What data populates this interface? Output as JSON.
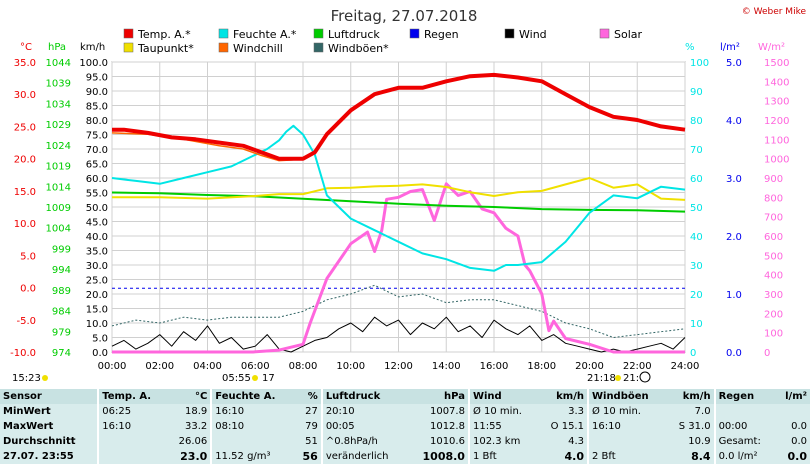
{
  "title": "Freitag, 27.07.2018",
  "copyright": "© Weber Mike",
  "colors": {
    "temp": "#ee0000",
    "dew": "#f0e000",
    "hum": "#00e5e5",
    "wind": "#000000",
    "pressure": "#00cc00",
    "gust": "#336666",
    "rain": "#0000ee",
    "solar": "#ff66dd",
    "windchill": "#ff6600"
  },
  "legend": [
    {
      "label": "Temp. A.*",
      "color": "#ee0000"
    },
    {
      "label": "Taupunkt*",
      "color": "#f0e000"
    },
    {
      "label": "Feuchte A.*",
      "color": "#00e5e5"
    },
    {
      "label": "Windchill",
      "color": "#ff6600"
    },
    {
      "label": "Luftdruck",
      "color": "#00cc00"
    },
    {
      "label": "Windböen*",
      "color": "#336666"
    },
    {
      "label": "Regen",
      "color": "#0000ee"
    },
    {
      "label": "Wind",
      "color": "#000000"
    },
    {
      "label": "Solar",
      "color": "#ff66dd"
    }
  ],
  "axis_units": {
    "temp": "°C",
    "pressure": "hPa",
    "wind": "km/h",
    "hum": "%",
    "rain": "l/m²",
    "solar": "W/m²"
  },
  "bottom_labels": {
    "left_time": "15:23",
    "sunrise": "05:55",
    "moon_left": "17",
    "sunset": "21:18",
    "moon_right": "21:"
  },
  "chart_data": {
    "type": "line",
    "x_range": [
      0,
      24
    ],
    "x_ticks": [
      "00:00",
      "02:00",
      "04:00",
      "06:00",
      "08:00",
      "10:00",
      "12:00",
      "14:00",
      "16:00",
      "18:00",
      "20:00",
      "22:00",
      "24:00"
    ],
    "axes": {
      "temp": {
        "range": [
          -10,
          35
        ],
        "ticks": [
          "35.0",
          "30.0",
          "25.0",
          "20.0",
          "15.0",
          "10.0",
          "5.0",
          "0.0",
          "-5.0",
          "-10.0"
        ]
      },
      "pressure": {
        "range": [
          974,
          1044
        ],
        "ticks": [
          "1044",
          "1039",
          "1034",
          "1029",
          "1024",
          "1019",
          "1014",
          "1009",
          "1004",
          "999",
          "994",
          "989",
          "984",
          "979",
          "974"
        ]
      },
      "wind": {
        "range": [
          0,
          100
        ],
        "ticks": [
          "100.0",
          "95.0",
          "90.0",
          "85.0",
          "80.0",
          "75.0",
          "70.0",
          "65.0",
          "60.0",
          "55.0",
          "50.0",
          "45.0",
          "40.0",
          "35.0",
          "30.0",
          "25.0",
          "20.0",
          "15.0",
          "10.0",
          "5.0",
          "0.0"
        ]
      },
      "hum": {
        "range": [
          0,
          100
        ],
        "ticks": [
          "100",
          "90",
          "80",
          "70",
          "60",
          "50",
          "40",
          "30",
          "20",
          "10",
          "0"
        ]
      },
      "rain": {
        "range": [
          0,
          5
        ],
        "ticks": [
          "5.0",
          "4.0",
          "3.0",
          "2.0",
          "1.0",
          "0.0"
        ]
      },
      "solar": {
        "range": [
          0,
          1500
        ],
        "ticks": [
          "1500",
          "1400",
          "1300",
          "1200",
          "1100",
          "1000",
          "900",
          "800",
          "700",
          "600",
          "500",
          "400",
          "300",
          "200",
          "100",
          "0"
        ]
      }
    },
    "series": [
      {
        "key": "temp",
        "name": "Temp. A.*",
        "axis": "temp",
        "x": [
          0,
          0.5,
          1.5,
          2.5,
          3.5,
          4.5,
          5.5,
          6.25,
          7,
          7.5,
          8,
          8.5,
          9,
          10,
          11,
          12,
          13,
          14,
          15,
          16,
          17,
          18,
          19,
          20,
          21,
          22,
          23,
          24
        ],
        "y": [
          24.5,
          24.5,
          24,
          23.3,
          23,
          22.5,
          22,
          21,
          20,
          20,
          20,
          21,
          23.8,
          27.5,
          30,
          31,
          31,
          32,
          32.8,
          33,
          32.6,
          32,
          30,
          28,
          26.5,
          26,
          25,
          24.5
        ]
      },
      {
        "key": "windchill",
        "name": "Windchill",
        "axis": "temp",
        "x": [
          0,
          1.5,
          3,
          4.5,
          5.5,
          6.25,
          7,
          7.5,
          8
        ],
        "y": [
          24,
          23.8,
          23,
          22,
          21.5,
          20.5,
          19.7,
          19.8,
          20
        ]
      },
      {
        "key": "dew",
        "name": "Taupunkt*",
        "axis": "temp",
        "x": [
          0,
          2,
          4,
          6,
          7,
          8,
          9,
          10,
          11,
          12,
          13,
          14,
          15,
          16,
          17,
          18,
          19,
          20,
          21,
          22,
          23,
          24
        ],
        "y": [
          14,
          14,
          13.8,
          14.2,
          14.5,
          14.5,
          15.4,
          15.5,
          15.7,
          15.8,
          16,
          15.6,
          14.8,
          14.2,
          14.8,
          15,
          16,
          17,
          15.5,
          16,
          13.8,
          13.6
        ]
      },
      {
        "key": "hum",
        "name": "Feuchte A.*",
        "axis": "hum",
        "x": [
          0,
          1,
          2,
          3,
          4,
          5,
          5.5,
          6,
          6.5,
          7,
          7.3,
          7.6,
          8,
          8.5,
          9,
          10,
          11,
          12,
          13,
          14,
          15,
          16,
          16.5,
          17,
          18,
          19,
          20,
          21,
          22,
          23,
          24
        ],
        "y": [
          60,
          59,
          58,
          60,
          62,
          64,
          66,
          68,
          70,
          73,
          76,
          78,
          75,
          68,
          54,
          46,
          42,
          38,
          34,
          32,
          29,
          28,
          30,
          30,
          31,
          38,
          48,
          54,
          53,
          57,
          56
        ]
      },
      {
        "key": "pressure",
        "name": "Luftdruck",
        "axis": "pressure",
        "x": [
          0,
          2,
          4,
          6,
          8,
          10,
          12,
          14,
          16,
          18,
          20,
          22,
          24
        ],
        "y": [
          1012.5,
          1012.3,
          1011.9,
          1011.6,
          1011,
          1010.4,
          1009.8,
          1009.3,
          1009.0,
          1008.5,
          1008.3,
          1008.2,
          1007.9
        ]
      },
      {
        "key": "gust",
        "name": "Windböen*",
        "axis": "wind",
        "x": [
          0,
          1,
          2,
          3,
          4,
          5,
          6,
          7,
          8,
          9,
          10,
          11,
          12,
          13,
          14,
          15,
          16,
          17,
          18,
          19,
          20,
          21,
          22,
          23,
          24
        ],
        "y": [
          9,
          11,
          10,
          12,
          11,
          12,
          12,
          12,
          14,
          18,
          20,
          23,
          19,
          20,
          17,
          18,
          18,
          16,
          14,
          10,
          8,
          5,
          6,
          7,
          8
        ]
      },
      {
        "key": "solar",
        "name": "Solar",
        "axis": "solar",
        "x": [
          0,
          5.9,
          7,
          8,
          8.3,
          9,
          10,
          10.7,
          11,
          11.3,
          11.5,
          12,
          12.5,
          13,
          13.5,
          14,
          14.5,
          15,
          15.5,
          16,
          16.5,
          17,
          17.3,
          17.5,
          18,
          18.3,
          18.5,
          19,
          20,
          21,
          24
        ],
        "y": [
          0,
          0,
          10,
          40,
          150,
          380,
          560,
          620,
          520,
          630,
          790,
          800,
          830,
          840,
          680,
          870,
          810,
          830,
          740,
          720,
          640,
          600,
          450,
          420,
          300,
          110,
          160,
          70,
          40,
          0,
          0
        ]
      },
      {
        "key": "rain",
        "name": "Regen",
        "axis": "rain",
        "x": [
          0,
          24
        ],
        "y": [
          1.1,
          1.1
        ]
      },
      {
        "key": "wind",
        "name": "Wind",
        "axis": "wind",
        "x": [
          0,
          0.5,
          1,
          1.5,
          2,
          2.5,
          3,
          3.5,
          4,
          4.5,
          5,
          5.5,
          6,
          6.5,
          7,
          7.5,
          8,
          8.5,
          9,
          9.5,
          10,
          10.5,
          11,
          11.5,
          12,
          12.5,
          13,
          13.5,
          14,
          14.5,
          15,
          15.5,
          16,
          16.5,
          17,
          17.5,
          18,
          18.5,
          19,
          19.5,
          20,
          20.5,
          21,
          21.5,
          22,
          22.5,
          23,
          23.5,
          24
        ],
        "y": [
          2,
          4,
          1,
          3,
          6,
          2,
          7,
          4,
          9,
          3,
          5,
          1,
          2,
          6,
          1,
          0,
          2,
          4,
          5,
          8,
          10,
          7,
          12,
          9,
          11,
          6,
          10,
          8,
          12,
          7,
          9,
          5,
          11,
          8,
          6,
          9,
          4,
          6,
          3,
          2,
          1,
          0,
          1,
          0,
          1,
          2,
          3,
          1,
          5
        ]
      }
    ]
  },
  "table": {
    "headers": {
      "sensor": "Sensor",
      "temp": "Temp. A.",
      "temp_u": "°C",
      "hum": "Feuchte A.",
      "hum_u": "%",
      "press": "Luftdruck",
      "press_u": "hPa",
      "wind": "Wind",
      "wind_u": "km/h",
      "gust": "Windböen",
      "gust_u": "km/h",
      "rain": "Regen",
      "rain_u": "l/m²"
    },
    "rows": [
      {
        "label": "MinWert",
        "c": [
          "06:25",
          "18.9",
          "16:10",
          "27",
          "20:10",
          "1007.8",
          "Ø 10 min.",
          "3.3",
          "Ø 10 min.",
          "7.0",
          "",
          ""
        ]
      },
      {
        "label": "MaxWert",
        "c": [
          "16:10",
          "33.2",
          "08:10",
          "79",
          "00:05",
          "1012.8",
          "11:55",
          "O 15.1",
          "16:10",
          "S 31.0",
          "00:00",
          "0.0"
        ]
      },
      {
        "label": "Durchschnitt",
        "c": [
          "",
          "26.06",
          "",
          "51",
          "^0.8hPa/h",
          "1010.6",
          "102.3 km",
          "4.3",
          "",
          "10.9",
          "Gesamt:",
          "0.0"
        ]
      },
      {
        "label": "27.07. 23:55",
        "c": [
          "",
          "23.0",
          "11.52 g/m³",
          "56",
          "veränderlich",
          "1008.0",
          "1 Bft",
          "4.0",
          "2 Bft",
          "8.4",
          "0.0 l/m²",
          "0.0"
        ]
      }
    ]
  }
}
